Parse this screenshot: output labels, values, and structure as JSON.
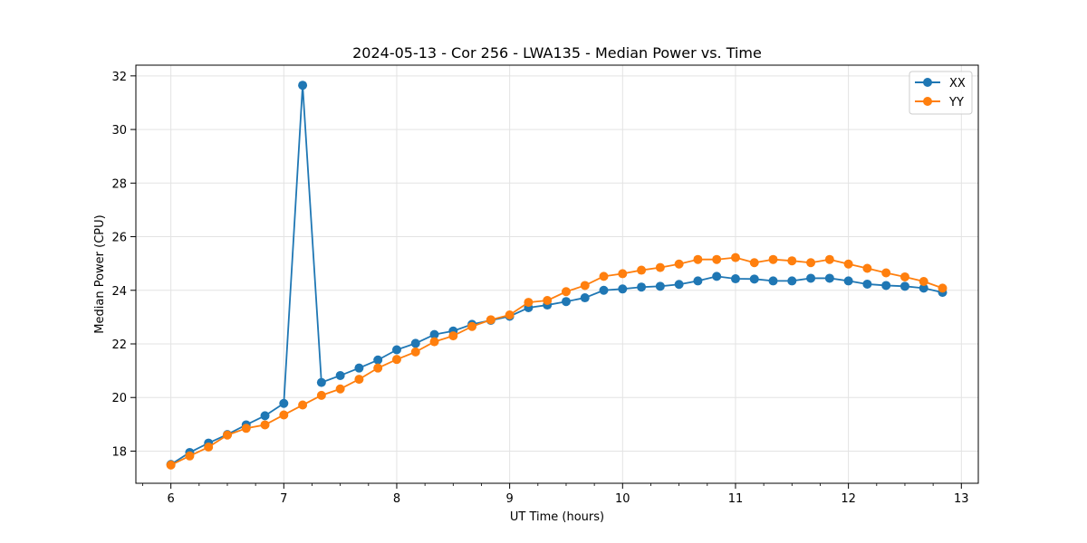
{
  "chart_data": {
    "type": "line",
    "title": "2024-05-13 - Cor 256 - LWA135 - Median Power vs. Time",
    "xlabel": "UT Time (hours)",
    "ylabel": "Median Power (CPU)",
    "xlim": [
      5.69,
      13.15
    ],
    "ylim": [
      16.8,
      32.4
    ],
    "xticks": [
      6,
      7,
      8,
      9,
      10,
      11,
      12,
      13
    ],
    "xtick_labels": [
      "6",
      "7",
      "8",
      "9",
      "10",
      "11",
      "12",
      "13"
    ],
    "yticks": [
      18,
      20,
      22,
      24,
      26,
      28,
      30,
      32
    ],
    "ytick_labels": [
      "18",
      "20",
      "22",
      "24",
      "26",
      "28",
      "30",
      "32"
    ],
    "grid": true,
    "legend_position": "top-right",
    "x": [
      6.0,
      6.1667,
      6.3333,
      6.5,
      6.6667,
      6.8333,
      7.0,
      7.1667,
      7.3333,
      7.5,
      7.6667,
      7.8333,
      8.0,
      8.1667,
      8.3333,
      8.5,
      8.6667,
      8.8333,
      9.0,
      9.1667,
      9.3333,
      9.5,
      9.6667,
      9.8333,
      10.0,
      10.1667,
      10.3333,
      10.5,
      10.6667,
      10.8333,
      11.0,
      11.1667,
      11.3333,
      11.5,
      11.6667,
      11.8333,
      12.0,
      12.1667,
      12.3333,
      12.5,
      12.6667,
      12.8333
    ],
    "series": [
      {
        "name": "XX",
        "color": "#1f77b4",
        "values": [
          17.5,
          17.95,
          18.3,
          18.62,
          18.98,
          19.32,
          19.78,
          31.65,
          20.56,
          20.82,
          21.1,
          21.4,
          21.78,
          22.02,
          22.35,
          22.48,
          22.73,
          22.88,
          23.03,
          23.35,
          23.45,
          23.58,
          23.72,
          24.0,
          24.05,
          24.12,
          24.15,
          24.22,
          24.35,
          24.52,
          24.43,
          24.42,
          24.35,
          24.35,
          24.45,
          24.45,
          24.35,
          24.23,
          24.18,
          24.15,
          24.08,
          23.92
        ]
      },
      {
        "name": "YY",
        "color": "#ff7f0e",
        "values": [
          17.48,
          17.82,
          18.15,
          18.6,
          18.85,
          18.98,
          19.35,
          19.72,
          20.08,
          20.32,
          20.68,
          21.1,
          21.42,
          21.7,
          22.08,
          22.3,
          22.65,
          22.9,
          23.08,
          23.55,
          23.62,
          23.95,
          24.18,
          24.52,
          24.62,
          24.75,
          24.85,
          24.98,
          25.15,
          25.15,
          25.22,
          25.03,
          25.15,
          25.1,
          25.03,
          25.15,
          24.98,
          24.82,
          24.65,
          24.5,
          24.33,
          24.08
        ]
      }
    ]
  }
}
